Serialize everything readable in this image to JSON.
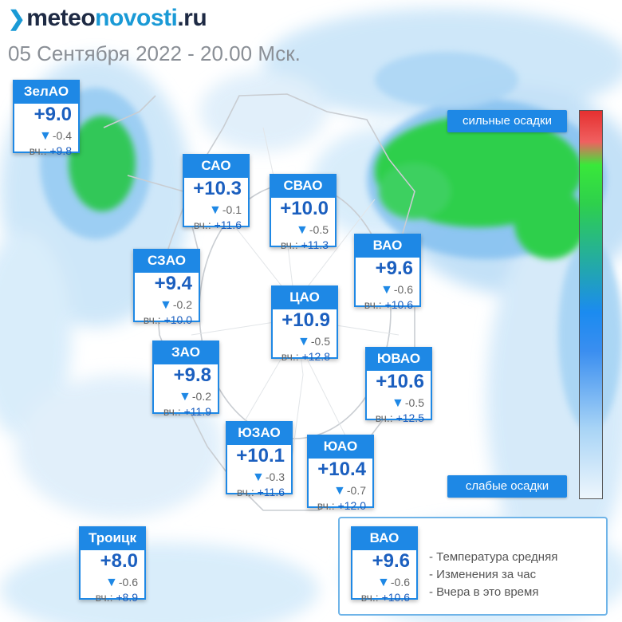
{
  "brand": {
    "part1": "meteo",
    "part2": "novosti",
    "part3": ".ru"
  },
  "subtitle": "05 Сентября 2022 - 20.00 Мск.",
  "scale": {
    "strong": "сильные осадки",
    "weak": "слабые осадки"
  },
  "yesterday_prefix": "вч.:",
  "districts": [
    {
      "name": "ЗелАО",
      "temp": "+9.0",
      "change": "-0.4",
      "yesterday": "+9.8"
    },
    {
      "name": "САО",
      "temp": "+10.3",
      "change": "-0.1",
      "yesterday": "+11.6"
    },
    {
      "name": "СВАО",
      "temp": "+10.0",
      "change": "-0.5",
      "yesterday": "+11.3"
    },
    {
      "name": "ВАО",
      "temp": "+9.6",
      "change": "-0.6",
      "yesterday": "+10.6"
    },
    {
      "name": "СЗАО",
      "temp": "+9.4",
      "change": "-0.2",
      "yesterday": "+10.0"
    },
    {
      "name": "ЦАО",
      "temp": "+10.9",
      "change": "-0.5",
      "yesterday": "+12.8"
    },
    {
      "name": "ЗАО",
      "temp": "+9.8",
      "change": "-0.2",
      "yesterday": "+11.9"
    },
    {
      "name": "ЮВАО",
      "temp": "+10.6",
      "change": "-0.5",
      "yesterday": "+12.5"
    },
    {
      "name": "ЮЗАО",
      "temp": "+10.1",
      "change": "-0.3",
      "yesterday": "+11.6"
    },
    {
      "name": "ЮАО",
      "temp": "+10.4",
      "change": "-0.7",
      "yesterday": "+12.0"
    },
    {
      "name": "Троицк",
      "temp": "+8.0",
      "change": "-0.6",
      "yesterday": "+8.9"
    }
  ],
  "legend": {
    "example": {
      "name": "ВАО",
      "temp": "+9.6",
      "change": "-0.6",
      "yesterday": "+10.6"
    },
    "temperature_desc": "- Температура средняя",
    "change_desc": "- Изменения за час",
    "yesterday_desc": "- Вчера в это время"
  },
  "colors": {
    "accent": "#1e88e5",
    "value": "#1b5fbf",
    "precip_light": "#bfe0f8",
    "precip_heavy": "#2ecf4a"
  }
}
